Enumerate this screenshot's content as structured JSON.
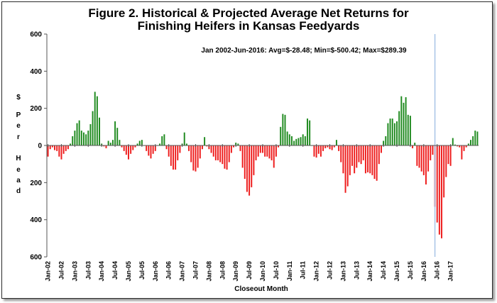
{
  "chart_data": {
    "type": "bar",
    "title_line1": "Figure 2.  Historical & Projected Average Net Returns for",
    "title_line2": "Finishing Heifers in Kansas Feedyards",
    "annotation": "Jan 2002-Jun-2016:  Avg=$-28.48; Min=$-500.42; Max=$289.39",
    "xlabel": "Closeout Month",
    "ylabel_letters": [
      "$",
      "P",
      "e",
      "r",
      "H",
      "e",
      "a",
      "d"
    ],
    "ylim": [
      -600,
      600
    ],
    "yticks": [
      600,
      400,
      200,
      0,
      200,
      400,
      600
    ],
    "ytick_values": [
      600,
      400,
      200,
      0,
      -200,
      -400,
      -600
    ],
    "start_month": "Jan-02",
    "xtick_labels": [
      "Jan-02",
      "Jul-02",
      "Jan-03",
      "Jul-03",
      "Jan-04",
      "Jul-04",
      "Jan-05",
      "Jul-05",
      "Jan-06",
      "Jul-06",
      "Jan-07",
      "Jul-07",
      "Jan-08",
      "Jul-08",
      "Jan-09",
      "Jul-09",
      "Jan-10",
      "Jul-10",
      "Jan-11",
      "Jul-11",
      "Jan-12",
      "Jul-12",
      "Jan-13",
      "Jul-13",
      "Jan-14",
      "Jul-14",
      "Jan-15",
      "Jul-15",
      "Jan-16",
      "Jul-16",
      "Jan-17"
    ],
    "positive_color": "#1f8a1f",
    "negative_color": "#ee1c1c",
    "divider_label": "Jun-16 actual/projected boundary",
    "divider_color": "#a8c4e6",
    "values": [
      -60,
      -20,
      -10,
      -25,
      -30,
      -60,
      -75,
      -45,
      -30,
      -20,
      10,
      50,
      80,
      120,
      135,
      80,
      70,
      60,
      80,
      115,
      185,
      289,
      265,
      150,
      10,
      -5,
      -15,
      25,
      15,
      30,
      130,
      95,
      30,
      -10,
      -30,
      -50,
      -75,
      -45,
      -25,
      -10,
      10,
      25,
      30,
      0,
      -30,
      -55,
      -70,
      -45,
      -30,
      0,
      10,
      50,
      60,
      -20,
      -60,
      -110,
      -130,
      -130,
      -80,
      -40,
      10,
      70,
      10,
      -30,
      -90,
      -135,
      -140,
      -120,
      -70,
      -20,
      45,
      -5,
      -20,
      -40,
      -60,
      -80,
      -80,
      -90,
      -100,
      -125,
      -130,
      -90,
      -40,
      -10,
      15,
      10,
      -30,
      -120,
      -180,
      -250,
      -270,
      -225,
      -160,
      -80,
      -60,
      -40,
      -40,
      -60,
      -60,
      -70,
      -80,
      -120,
      -60,
      -10,
      100,
      170,
      165,
      75,
      60,
      50,
      25,
      35,
      40,
      45,
      60,
      50,
      145,
      135,
      0,
      -60,
      -65,
      -45,
      -60,
      -30,
      -15,
      -10,
      -20,
      -25,
      -10,
      30,
      -30,
      -90,
      -150,
      -255,
      -220,
      -160,
      -110,
      -150,
      -120,
      -90,
      -100,
      -80,
      -150,
      -145,
      -150,
      -160,
      -180,
      -190,
      -100,
      -40,
      25,
      50,
      120,
      145,
      145,
      120,
      130,
      185,
      265,
      230,
      260,
      165,
      160,
      -15,
      15,
      -110,
      -120,
      -140,
      -160,
      -210,
      -140,
      -80,
      -50,
      -330,
      -415,
      -480,
      -500,
      -280,
      -170,
      -100,
      -110,
      40,
      5,
      -5,
      -10,
      -75,
      -30,
      -10,
      10,
      30,
      50,
      80,
      75
    ],
    "projection_start_index": 173
  }
}
